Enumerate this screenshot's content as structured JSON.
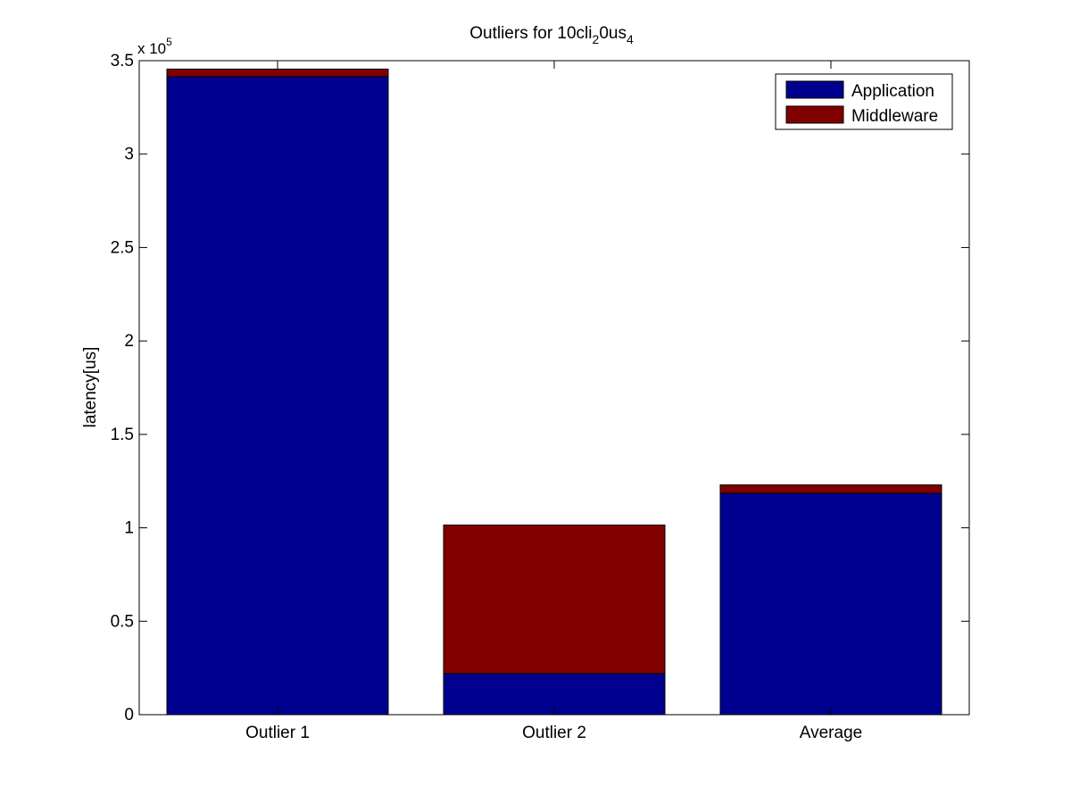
{
  "chart_data": {
    "type": "bar",
    "stacked": true,
    "title": {
      "base": "Outliers for 10cli",
      "sub1": "2",
      "mid": "0us",
      "sub2": "4"
    },
    "xlabel": "",
    "ylabel": "latency[us]",
    "y_multiplier": {
      "base": "x 10",
      "exponent": "5"
    },
    "categories": [
      "Outlier 1",
      "Outlier 2",
      "Average"
    ],
    "series": [
      {
        "name": "Application",
        "color": "#00008f",
        "values": [
          341500,
          22000,
          118500
        ]
      },
      {
        "name": "Middleware",
        "color": "#800000",
        "values": [
          4000,
          79500,
          4500
        ]
      }
    ],
    "ylim": [
      0,
      350000
    ],
    "yticks": [
      {
        "value": 0,
        "label": "0"
      },
      {
        "value": 50000,
        "label": "0.5"
      },
      {
        "value": 100000,
        "label": "1"
      },
      {
        "value": 150000,
        "label": "1.5"
      },
      {
        "value": 200000,
        "label": "2"
      },
      {
        "value": 250000,
        "label": "2.5"
      },
      {
        "value": 300000,
        "label": "3"
      },
      {
        "value": 350000,
        "label": "3.5"
      }
    ],
    "grid": false,
    "legend_position": "top-right"
  }
}
